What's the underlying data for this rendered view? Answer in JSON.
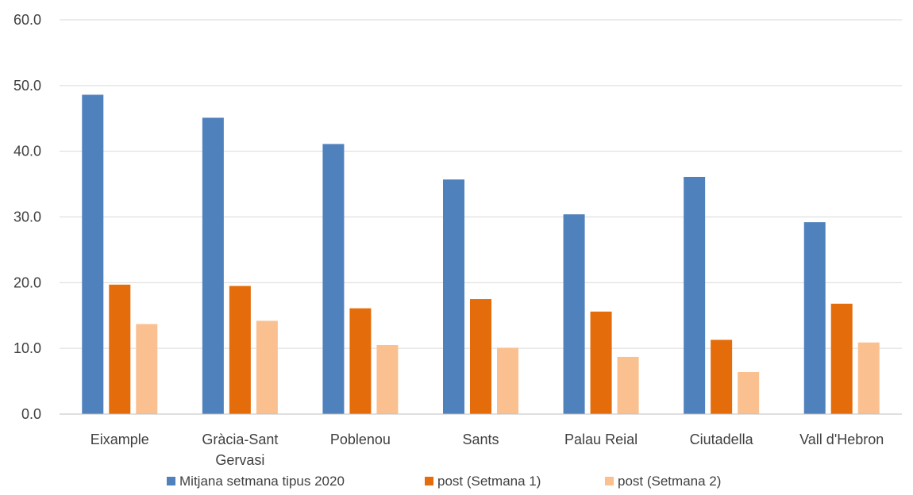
{
  "chart_data": {
    "type": "bar",
    "categories": [
      "Eixample",
      "Gràcia-Sant Gervasi",
      "Poblenou",
      "Sants",
      "Palau Reial",
      "Ciutadella",
      "Vall d'Hebron"
    ],
    "category_lines": [
      [
        "Eixample"
      ],
      [
        "Gràcia-Sant",
        "Gervasi"
      ],
      [
        "Poblenou"
      ],
      [
        "Sants"
      ],
      [
        "Palau Reial"
      ],
      [
        "Ciutadella"
      ],
      [
        "Vall d'Hebron"
      ]
    ],
    "series": [
      {
        "name": "Mitjana setmana tipus 2020",
        "color": "#4F81BD",
        "values": [
          48.6,
          45.1,
          41.1,
          35.7,
          30.4,
          36.1,
          29.2
        ]
      },
      {
        "name": "post (Setmana 1)",
        "color": "#E46C0A",
        "values": [
          19.7,
          19.5,
          16.1,
          17.5,
          15.6,
          11.3,
          16.8
        ]
      },
      {
        "name": "post (Setmana 2)",
        "color": "#FAC090",
        "values": [
          13.7,
          14.2,
          10.5,
          10.1,
          8.7,
          6.4,
          10.9
        ]
      }
    ],
    "title": "",
    "xlabel": "",
    "ylabel": "",
    "ylim": [
      0,
      60
    ],
    "yticks": [
      "0.0",
      "10.0",
      "20.0",
      "30.0",
      "40.0",
      "50.0",
      "60.0"
    ],
    "grid": true,
    "legend_position": "bottom"
  }
}
